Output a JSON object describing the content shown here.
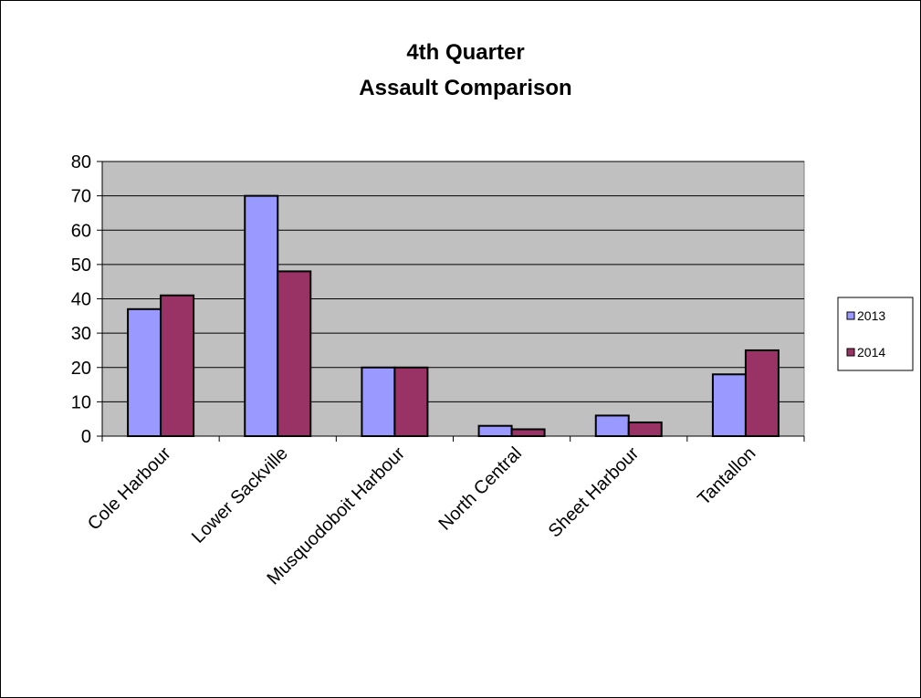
{
  "chart_data": {
    "type": "bar",
    "title": [
      "4th Quarter",
      "Assault Comparison"
    ],
    "categories": [
      "Cole Harbour",
      "Lower Sackville",
      "Musquodoboit Harbour",
      "North Central",
      "Sheet Harbour",
      "Tantallon"
    ],
    "series": [
      {
        "name": "2013",
        "color": "#9999ff",
        "values": [
          37,
          70,
          20,
          3,
          6,
          18
        ]
      },
      {
        "name": "2014",
        "color": "#993366",
        "values": [
          41,
          48,
          20,
          2,
          4,
          25
        ]
      }
    ],
    "ylim": [
      0,
      80
    ],
    "yticks": [
      0,
      10,
      20,
      30,
      40,
      50,
      60,
      70,
      80
    ],
    "grid": true,
    "plot_background": "#c0c0c0",
    "legend_position": "right"
  }
}
